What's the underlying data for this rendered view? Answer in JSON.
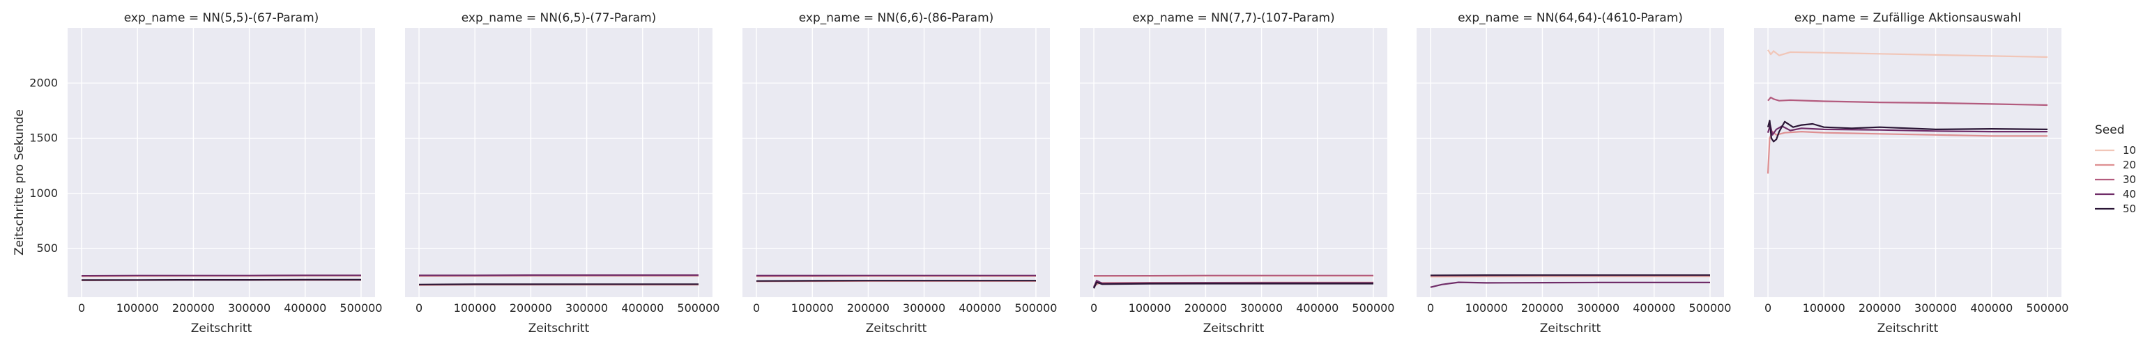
{
  "colors": {
    "panel_bg": "#eaeaf2",
    "grid": "#ffffff",
    "seed_10": "#f1c6b8",
    "seed_20": "#de8f91",
    "seed_30": "#b35b7e",
    "seed_40": "#6f2c68",
    "seed_50": "#2a1535"
  },
  "y_axis_label": "Zeitschritte pro Sekunde",
  "legend": {
    "title": "Seed",
    "entries": [
      "10",
      "20",
      "30",
      "40",
      "50"
    ]
  },
  "chart_data": {
    "type": "line",
    "xlabel": "Zeitschritt",
    "ylabel": "Zeitschritte pro Sekunde",
    "xlim": [
      -25000,
      525000
    ],
    "ylim": [
      60,
      2500
    ],
    "x_ticks": [
      0,
      100000,
      200000,
      300000,
      400000,
      500000
    ],
    "x_tick_labels": [
      "0",
      "100000",
      "200000",
      "300000",
      "400000",
      "500000"
    ],
    "y_ticks": [
      500,
      1000,
      1500,
      2000
    ],
    "y_tick_labels": [
      "500",
      "1000",
      "1500",
      "2000"
    ],
    "grid": true,
    "legend_position": "right",
    "panels": [
      {
        "title": "exp_name = NN(5,5)-(67-Param)",
        "series": [
          {
            "name": "10",
            "x": [
              0,
              100000,
              200000,
              300000,
              400000,
              500000
            ],
            "values": [
              248,
              250,
              251,
              251,
              252,
              252
            ]
          },
          {
            "name": "20",
            "x": [
              0,
              100000,
              200000,
              300000,
              400000,
              500000
            ],
            "values": [
              212,
              214,
              215,
              215,
              215,
              215
            ]
          },
          {
            "name": "30",
            "x": [
              0,
              100000,
              200000,
              300000,
              400000,
              500000
            ],
            "values": [
              252,
              254,
              255,
              255,
              256,
              256
            ]
          },
          {
            "name": "40",
            "x": [
              0,
              100000,
              200000,
              300000,
              400000,
              500000
            ],
            "values": [
              255,
              256,
              257,
              257,
              258,
              258
            ]
          },
          {
            "name": "50",
            "x": [
              0,
              100000,
              200000,
              300000,
              400000,
              500000
            ],
            "values": [
              215,
              216,
              217,
              217,
              218,
              218
            ]
          }
        ]
      },
      {
        "title": "exp_name = NN(6,5)-(77-Param)",
        "series": [
          {
            "name": "10",
            "x": [
              0,
              100000,
              200000,
              300000,
              400000,
              500000
            ],
            "values": [
              250,
              251,
              252,
              252,
              252,
              252
            ]
          },
          {
            "name": "20",
            "x": [
              0,
              100000,
              200000,
              300000,
              400000,
              500000
            ],
            "values": [
              170,
              172,
              172,
              173,
              173,
              173
            ]
          },
          {
            "name": "30",
            "x": [
              0,
              100000,
              200000,
              300000,
              400000,
              500000
            ],
            "values": [
              254,
              255,
              256,
              256,
              256,
              256
            ]
          },
          {
            "name": "40",
            "x": [
              0,
              100000,
              200000,
              300000,
              400000,
              500000
            ],
            "values": [
              258,
              258,
              259,
              259,
              259,
              259
            ]
          },
          {
            "name": "50",
            "x": [
              0,
              100000,
              200000,
              300000,
              400000,
              500000
            ],
            "values": [
              175,
              177,
              177,
              178,
              178,
              178
            ]
          }
        ]
      },
      {
        "title": "exp_name = NN(6,6)-(86-Param)",
        "series": [
          {
            "name": "10",
            "x": [
              0,
              100000,
              200000,
              300000,
              400000,
              500000
            ],
            "values": [
              248,
              249,
              250,
              250,
              250,
              250
            ]
          },
          {
            "name": "20",
            "x": [
              0,
              100000,
              200000,
              300000,
              400000,
              500000
            ],
            "values": [
              203,
              205,
              206,
              206,
              206,
              206
            ]
          },
          {
            "name": "30",
            "x": [
              0,
              100000,
              200000,
              300000,
              400000,
              500000
            ],
            "values": [
              252,
              253,
              254,
              254,
              254,
              254
            ]
          },
          {
            "name": "40",
            "x": [
              0,
              100000,
              200000,
              300000,
              400000,
              500000
            ],
            "values": [
              256,
              256,
              257,
              257,
              257,
              257
            ]
          },
          {
            "name": "50",
            "x": [
              0,
              100000,
              200000,
              300000,
              400000,
              500000
            ],
            "values": [
              207,
              209,
              210,
              210,
              210,
              210
            ]
          }
        ]
      },
      {
        "title": "exp_name = NN(7,7)-(107-Param)",
        "series": [
          {
            "name": "10",
            "x": [
              0,
              100000,
              200000,
              300000,
              400000,
              500000
            ],
            "values": [
              250,
              251,
              252,
              252,
              252,
              252
            ]
          },
          {
            "name": "20",
            "x": [
              0,
              10000,
              100000,
              200000,
              300000,
              400000,
              500000
            ],
            "values": [
              160,
              190,
              192,
              192,
              193,
              193,
              193
            ]
          },
          {
            "name": "30",
            "x": [
              0,
              100000,
              200000,
              300000,
              400000,
              500000
            ],
            "values": [
              254,
              255,
              256,
              256,
              256,
              256
            ]
          },
          {
            "name": "40",
            "x": [
              0,
              5000,
              15000,
              100000,
              200000,
              300000,
              400000,
              500000
            ],
            "values": [
              150,
              210,
              185,
              188,
              189,
              189,
              189,
              189
            ]
          },
          {
            "name": "50",
            "x": [
              0,
              5000,
              15000,
              100000,
              200000,
              300000,
              400000,
              500000
            ],
            "values": [
              140,
              195,
              178,
              182,
              183,
              183,
              183,
              183
            ]
          }
        ]
      },
      {
        "title": "exp_name = NN(64,64)-(4610-Param)",
        "series": [
          {
            "name": "10",
            "x": [
              0,
              100000,
              200000,
              300000,
              400000,
              500000
            ],
            "values": [
              245,
              247,
              248,
              248,
              248,
              248
            ]
          },
          {
            "name": "20",
            "x": [
              0,
              100000,
              200000,
              300000,
              400000,
              500000
            ],
            "values": [
              252,
              253,
              254,
              254,
              254,
              254
            ]
          },
          {
            "name": "30",
            "x": [
              0,
              100000,
              200000,
              300000,
              400000,
              500000
            ],
            "values": [
              255,
              256,
              257,
              257,
              257,
              257
            ]
          },
          {
            "name": "40",
            "x": [
              0,
              20000,
              50000,
              100000,
              200000,
              300000,
              400000,
              500000
            ],
            "values": [
              150,
              175,
              195,
              190,
              192,
              193,
              193,
              193
            ]
          },
          {
            "name": "50",
            "x": [
              0,
              100000,
              200000,
              300000,
              400000,
              500000
            ],
            "values": [
              258,
              259,
              260,
              260,
              260,
              260
            ]
          }
        ]
      },
      {
        "title": "exp_name = Zufällige Aktionsauswahl",
        "series": [
          {
            "name": "10",
            "x": [
              0,
              5000,
              10000,
              20000,
              40000,
              100000,
              200000,
              300000,
              400000,
              500000
            ],
            "values": [
              2300,
              2260,
              2290,
              2250,
              2280,
              2275,
              2265,
              2255,
              2245,
              2235
            ]
          },
          {
            "name": "20",
            "x": [
              0,
              3000,
              8000,
              15000,
              30000,
              60000,
              100000,
              200000,
              300000,
              400000,
              500000
            ],
            "values": [
              1180,
              1500,
              1560,
              1530,
              1550,
              1560,
              1550,
              1540,
              1530,
              1520,
              1520
            ]
          },
          {
            "name": "30",
            "x": [
              0,
              5000,
              10000,
              20000,
              40000,
              100000,
              200000,
              300000,
              400000,
              500000
            ],
            "values": [
              1840,
              1870,
              1855,
              1840,
              1845,
              1835,
              1825,
              1820,
              1810,
              1800
            ]
          },
          {
            "name": "40",
            "x": [
              0,
              4000,
              8000,
              15000,
              25000,
              40000,
              60000,
              100000,
              200000,
              300000,
              400000,
              500000
            ],
            "values": [
              1550,
              1620,
              1530,
              1580,
              1610,
              1570,
              1590,
              1580,
              1575,
              1565,
              1560,
              1560
            ]
          },
          {
            "name": "50",
            "x": [
              0,
              3000,
              6000,
              10000,
              15000,
              20000,
              30000,
              45000,
              60000,
              80000,
              100000,
              150000,
              200000,
              300000,
              400000,
              500000
            ],
            "values": [
              1600,
              1660,
              1500,
              1470,
              1490,
              1560,
              1650,
              1600,
              1620,
              1630,
              1600,
              1590,
              1600,
              1580,
              1585,
              1580
            ]
          }
        ]
      }
    ]
  }
}
